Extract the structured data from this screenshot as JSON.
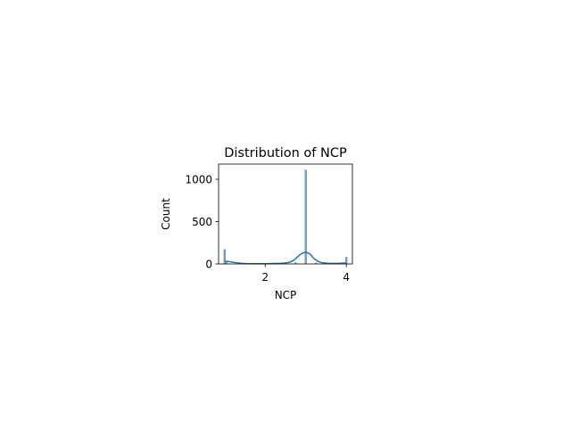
{
  "chart_data": {
    "type": "bar",
    "title": "Distribution of NCP",
    "xlabel": "NCP",
    "ylabel": "Count",
    "xlim": [
      0.85,
      4.15
    ],
    "ylim": [
      0,
      1180
    ],
    "xticks": [
      2,
      4
    ],
    "yticks": [
      0,
      500,
      1000
    ],
    "grid": false,
    "legend": "none",
    "histogram": {
      "bin_width": 0.04,
      "bins": [
        {
          "x": 1.0,
          "count": 170
        },
        {
          "x": 1.04,
          "count": 18
        },
        {
          "x": 1.5,
          "count": 4
        },
        {
          "x": 2.0,
          "count": 6
        },
        {
          "x": 2.5,
          "count": 8
        },
        {
          "x": 2.75,
          "count": 15
        },
        {
          "x": 3.0,
          "count": 1110
        },
        {
          "x": 3.25,
          "count": 12
        },
        {
          "x": 3.5,
          "count": 6
        },
        {
          "x": 3.75,
          "count": 5
        },
        {
          "x": 4.0,
          "count": 80
        }
      ]
    },
    "kde": {
      "x": [
        1.0,
        1.1,
        1.2,
        1.4,
        1.6,
        1.8,
        2.0,
        2.2,
        2.4,
        2.5,
        2.6,
        2.7,
        2.8,
        2.9,
        3.0,
        3.1,
        3.2,
        3.3,
        3.4,
        3.5,
        3.6,
        3.8,
        4.0
      ],
      "y": [
        32,
        28,
        20,
        8,
        3,
        2,
        3,
        5,
        8,
        12,
        20,
        42,
        85,
        125,
        140,
        118,
        65,
        30,
        14,
        9,
        7,
        6,
        12
      ]
    },
    "colors": {
      "bar_fill": "#7ea4c6",
      "bar_edge": "#5f87ad",
      "kde_line": "#1f77b4"
    }
  }
}
